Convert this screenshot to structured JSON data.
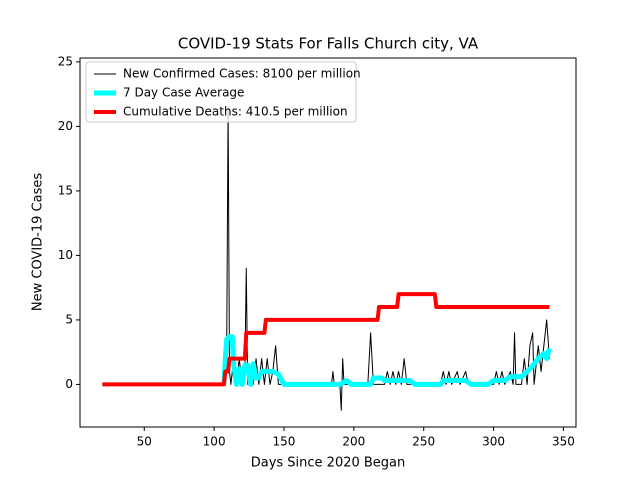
{
  "chart_data": {
    "type": "line",
    "title": "COVID-19 Stats For Falls Church city, VA",
    "x_label": "Days Since 2020 Began",
    "y_label": "New COVID-19 Cases",
    "xlim": [
      4,
      359
    ],
    "ylim": [
      -3.3,
      25.3
    ],
    "xticks": [
      50,
      100,
      150,
      200,
      250,
      300,
      350
    ],
    "yticks": [
      0,
      5,
      10,
      15,
      20,
      25
    ],
    "legend": "upper left",
    "series": [
      {
        "name": "New Confirmed Cases: 8100 per million",
        "color": "#000000",
        "linewidth": 1,
        "x": [
          20,
          107,
          108,
          109,
          110,
          111,
          112,
          114,
          116,
          118,
          120,
          122,
          123,
          124,
          126,
          128,
          130,
          132,
          134,
          136,
          138,
          140,
          142,
          144,
          146,
          150,
          184,
          185,
          186,
          190,
          191,
          192,
          193,
          210,
          212,
          214,
          222,
          224,
          226,
          228,
          230,
          232,
          234,
          236,
          238,
          262,
          264,
          266,
          268,
          270,
          274,
          276,
          280,
          282,
          300,
          302,
          304,
          306,
          308,
          312,
          314,
          315,
          316,
          320,
          322,
          324,
          326,
          328,
          329,
          332,
          334,
          336,
          338,
          340
        ],
        "values": [
          0,
          0,
          1,
          3,
          21.5,
          1,
          0,
          2,
          0,
          2,
          0,
          1,
          9,
          0,
          1,
          0,
          2,
          0,
          2,
          0,
          2,
          0,
          1,
          3,
          0,
          0,
          0,
          1,
          0,
          0,
          -2,
          2,
          0,
          0,
          4,
          0,
          0,
          1,
          0,
          1,
          0,
          1,
          0,
          2,
          0,
          0,
          1,
          0,
          1,
          0,
          1,
          0,
          1,
          0,
          0,
          1,
          0,
          1,
          0,
          1,
          0,
          4,
          0,
          0,
          2,
          0,
          3,
          4,
          0,
          3,
          1,
          3,
          5,
          2
        ]
      },
      {
        "name": "7 Day Case Average",
        "color": "#00ffff",
        "linewidth": 5,
        "x": [
          107,
          108,
          109,
          111,
          113,
          114,
          116,
          118,
          120,
          122,
          124,
          126,
          128,
          130,
          132,
          134,
          138,
          142,
          146,
          150,
          180,
          190,
          195,
          198,
          212,
          214,
          220,
          222,
          240,
          244,
          262,
          264,
          280,
          284,
          296,
          300,
          308,
          312,
          320,
          326,
          332,
          336,
          338,
          340
        ],
        "values": [
          0,
          2,
          3.5,
          3.7,
          3.7,
          1.5,
          0,
          1.2,
          0,
          1.5,
          1.5,
          0,
          1.6,
          0.5,
          0.5,
          1,
          1,
          1,
          0.8,
          0,
          0,
          0,
          0.3,
          0,
          0,
          0.5,
          0.5,
          0.3,
          0.3,
          0,
          0,
          0.3,
          0.3,
          0,
          0,
          0.3,
          0.3,
          0.6,
          0.6,
          1.2,
          2,
          2.4,
          2,
          2.8
        ]
      },
      {
        "name": "Cumulative Deaths: 410.5 per million",
        "color": "#ff0000",
        "linewidth": 4,
        "x": [
          20,
          107,
          108,
          110,
          111,
          122,
          123,
          136,
          137,
          217,
          218,
          231,
          232,
          258,
          259,
          340
        ],
        "values": [
          0,
          0,
          1,
          1,
          2,
          2,
          4,
          4,
          5,
          5,
          6,
          6,
          7,
          7,
          6,
          6
        ]
      }
    ]
  }
}
